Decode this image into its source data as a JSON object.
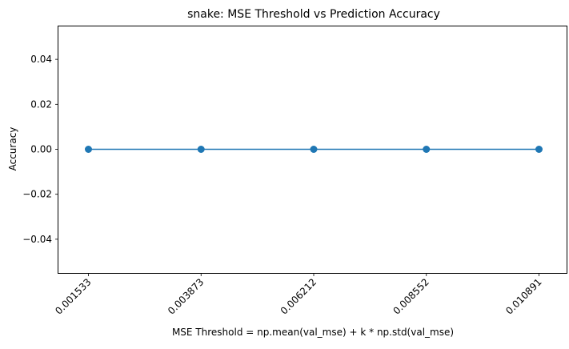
{
  "chart_data": {
    "type": "line",
    "title": "snake: MSE Threshold vs Prediction Accuracy",
    "xlabel": "MSE Threshold = np.mean(val_mse) + k * np.std(val_mse)",
    "ylabel": "Accuracy",
    "x_tick_labels": [
      "0.001533",
      "0.003873",
      "0.006212",
      "0.008552",
      "0.010891"
    ],
    "y_ticks": [
      -0.04,
      -0.02,
      0.0,
      0.02,
      0.04
    ],
    "y_tick_labels": [
      "−0.04",
      "−0.02",
      "0.00",
      "0.02",
      "0.04"
    ],
    "ylim": [
      -0.055,
      0.055
    ],
    "series": [
      {
        "x": [
          0.001533,
          0.003873,
          0.006212,
          0.008552,
          0.010891
        ],
        "values": [
          0,
          0,
          0,
          0,
          0
        ],
        "color": "#1f77b4",
        "marker": "circle"
      }
    ],
    "grid": false,
    "legend": false
  }
}
